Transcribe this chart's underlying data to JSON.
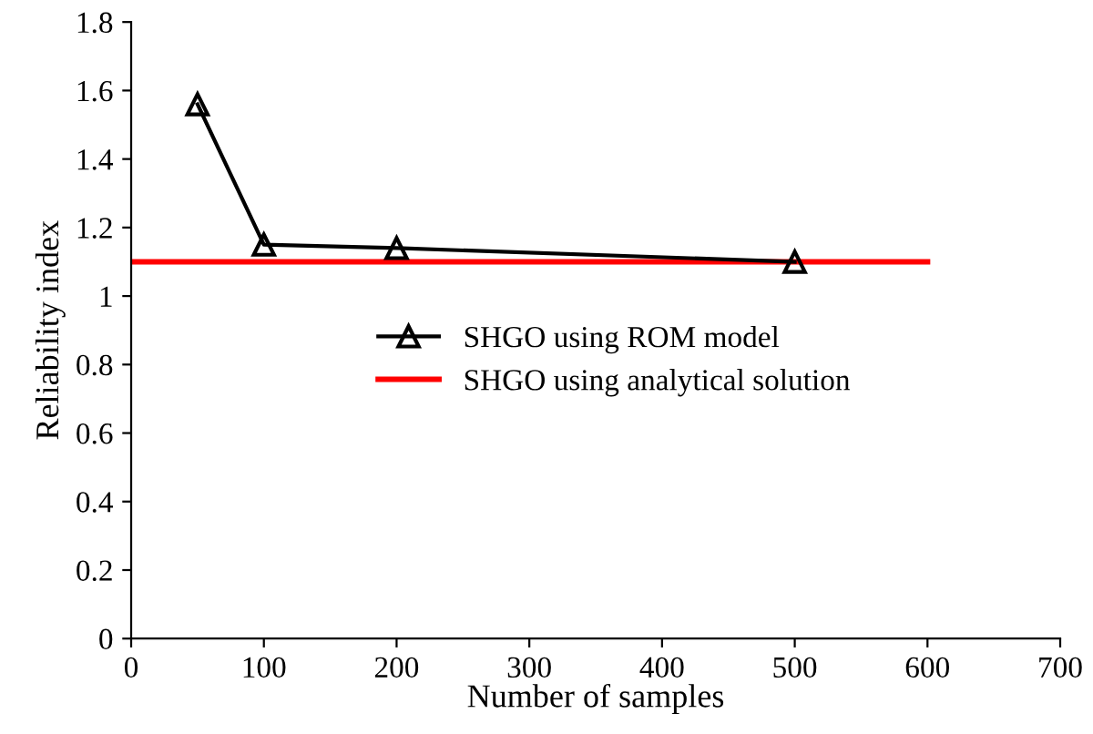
{
  "chart_data": {
    "type": "line",
    "xlabel": "Number of samples",
    "ylabel": "Reliability index",
    "xlim": [
      0,
      700
    ],
    "xticks": [
      0,
      100,
      200,
      300,
      400,
      500,
      600,
      700
    ],
    "ylim": [
      0,
      1.8
    ],
    "yticks": [
      0,
      0.2,
      0.4,
      0.6,
      0.8,
      1,
      1.2,
      1.4,
      1.6,
      1.8
    ],
    "grid": false,
    "legend": "center",
    "series": [
      {
        "name": "SHGO using ROM model",
        "color": "#000000",
        "x": [
          50,
          100,
          200,
          500
        ],
        "values": [
          1.56,
          1.15,
          1.14,
          1.1
        ],
        "marker": "triangle"
      },
      {
        "name": "SHGO using analytical solution",
        "color": "#ff0000",
        "x": [
          0,
          600
        ],
        "values": [
          1.1,
          1.1
        ],
        "marker": "none"
      }
    ]
  }
}
